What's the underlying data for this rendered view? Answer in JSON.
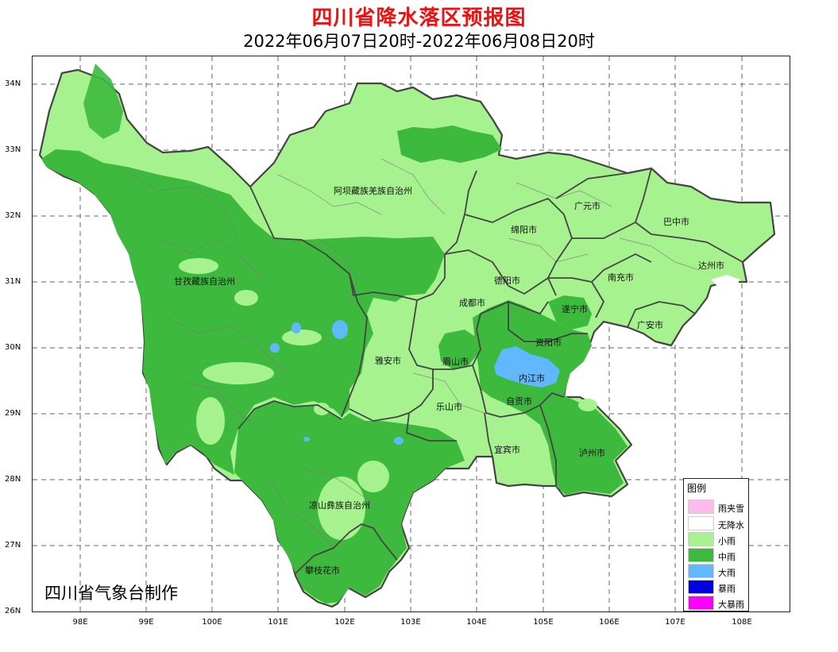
{
  "title": "四川省降水落区预报图",
  "subtitle": "2022年06月07日20时-2022年06月08日20时",
  "credit": "四川省气象台制作",
  "lat_labels": [
    "34N",
    "33N",
    "32N",
    "31N",
    "30N",
    "29N",
    "28N",
    "27N",
    "26N"
  ],
  "lon_labels": [
    "98E",
    "99E",
    "100E",
    "101E",
    "102E",
    "103E",
    "104E",
    "105E",
    "106E",
    "107E",
    "108E"
  ],
  "cities": [
    "阿坝藏族羌族自治州",
    "甘孜藏族自治州",
    "广元市",
    "巴中市",
    "绵阳市",
    "达州市",
    "德阳市",
    "南充市",
    "成都市",
    "遂宁市",
    "广安市",
    "资阳市",
    "雅安市",
    "眉山市",
    "内江市",
    "乐山市",
    "自贡市",
    "宜宾市",
    "泸州市",
    "凉山彝族自治州",
    "攀枝花市"
  ],
  "legend": {
    "title": "图例",
    "items": [
      {
        "label": "雨夹雪",
        "color": "#ffbbee"
      },
      {
        "label": "无降水",
        "color": "#ffffff"
      },
      {
        "label": "小雨",
        "color": "#a6f28f"
      },
      {
        "label": "中雨",
        "color": "#3dba3d"
      },
      {
        "label": "大雨",
        "color": "#61b8ff"
      },
      {
        "label": "暴雨",
        "color": "#0000e1"
      },
      {
        "label": "大暴雨",
        "color": "#fa00fa"
      }
    ]
  }
}
